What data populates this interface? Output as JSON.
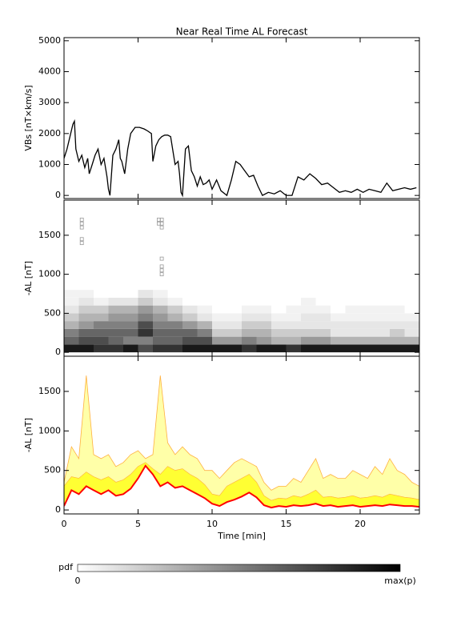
{
  "chart_data": [
    {
      "type": "line",
      "title": "Near Real Time AL Forecast",
      "ylabel": "VBs [nT×km/s]",
      "color": "#000000",
      "xlim": [
        0,
        24
      ],
      "xticks": [
        0,
        5,
        10,
        15,
        20
      ],
      "ylim": [
        -100,
        5100
      ],
      "yticks": [
        0,
        1000,
        2000,
        3000,
        4000,
        5000
      ],
      "x": [
        0,
        0.2,
        0.4,
        0.6,
        0.7,
        0.8,
        1.0,
        1.2,
        1.4,
        1.6,
        1.7,
        1.9,
        2.1,
        2.3,
        2.5,
        2.7,
        2.9,
        3.0,
        3.1,
        3.3,
        3.5,
        3.7,
        3.8,
        3.9,
        4.1,
        4.3,
        4.5,
        4.8,
        5.1,
        5.4,
        5.6,
        5.9,
        6.0,
        6.2,
        6.4,
        6.6,
        6.8,
        7.0,
        7.2,
        7.4,
        7.5,
        7.7,
        7.8,
        7.9,
        8.0,
        8.2,
        8.4,
        8.6,
        8.8,
        9.0,
        9.2,
        9.4,
        9.6,
        9.8,
        10.0,
        10.3,
        10.6,
        11.0,
        11.3,
        11.6,
        11.9,
        12.2,
        12.5,
        12.8,
        13.1,
        13.4,
        13.8,
        14.2,
        14.6,
        15.0,
        15.4,
        15.8,
        16.2,
        16.6,
        17.0,
        17.4,
        17.8,
        18.2,
        18.6,
        19.0,
        19.4,
        19.8,
        20.2,
        20.6,
        21.0,
        21.4,
        21.8,
        22.2,
        22.6,
        23.0,
        23.4,
        23.8
      ],
      "values": [
        1200,
        1500,
        1900,
        2300,
        2400,
        1500,
        1100,
        1300,
        900,
        1200,
        700,
        1000,
        1300,
        1500,
        1000,
        1200,
        600,
        200,
        0,
        1300,
        1500,
        1800,
        1200,
        1100,
        700,
        1500,
        2000,
        2200,
        2200,
        2150,
        2100,
        2000,
        1100,
        1600,
        1800,
        1900,
        1950,
        1950,
        1900,
        1300,
        1000,
        1100,
        700,
        100,
        0,
        1500,
        1600,
        800,
        600,
        300,
        600,
        350,
        400,
        500,
        200,
        500,
        150,
        0,
        500,
        1100,
        1000,
        800,
        600,
        650,
        300,
        0,
        100,
        50,
        150,
        0,
        0,
        600,
        500,
        700,
        550,
        350,
        400,
        250,
        100,
        150,
        100,
        200,
        100,
        200,
        150,
        100,
        400,
        150,
        200,
        250,
        200,
        250
      ]
    },
    {
      "type": "heatmap",
      "ylabel": "-AL [nT]",
      "xlim": [
        0,
        24
      ],
      "xticks": [
        0,
        5,
        10,
        15,
        20
      ],
      "ylim": [
        -50,
        1950
      ],
      "yticks": [
        0,
        500,
        1000,
        1500
      ],
      "xbins": [
        0,
        1,
        2,
        3,
        4,
        5,
        6,
        7,
        8,
        9,
        10,
        11,
        12,
        13,
        14,
        15,
        16,
        17,
        18,
        19,
        20,
        21,
        22,
        23,
        24
      ],
      "ybins": [
        0,
        100,
        200,
        300,
        400,
        500,
        600,
        700,
        800
      ],
      "values": [
        [
          0.9,
          0.9,
          0.8,
          0.8,
          0.9,
          0.7,
          0.8,
          0.8,
          0.9,
          0.9,
          0.9,
          0.9,
          0.8,
          0.9,
          0.9,
          0.8,
          0.9,
          0.9,
          0.9,
          0.9,
          0.9,
          0.9,
          0.9,
          0.9
        ],
        [
          0.6,
          0.7,
          0.7,
          0.6,
          0.5,
          0.5,
          0.6,
          0.6,
          0.7,
          0.7,
          0.4,
          0.4,
          0.5,
          0.4,
          0.3,
          0.3,
          0.4,
          0.4,
          0.3,
          0.3,
          0.3,
          0.3,
          0.3,
          0.3
        ],
        [
          0.5,
          0.6,
          0.6,
          0.6,
          0.6,
          0.8,
          0.6,
          0.6,
          0.6,
          0.5,
          0.2,
          0.2,
          0.3,
          0.3,
          0.2,
          0.2,
          0.2,
          0.2,
          0.1,
          0.1,
          0.1,
          0.1,
          0.2,
          0.1
        ],
        [
          0.3,
          0.4,
          0.5,
          0.5,
          0.5,
          0.7,
          0.5,
          0.5,
          0.4,
          0.3,
          0.1,
          0.1,
          0.2,
          0.2,
          0.1,
          0.1,
          0.1,
          0.1,
          0.1,
          0.1,
          0.1,
          0.1,
          0.1,
          0.1
        ],
        [
          0.2,
          0.3,
          0.3,
          0.4,
          0.4,
          0.5,
          0.4,
          0.3,
          0.2,
          0.1,
          0.05,
          0.05,
          0.1,
          0.1,
          0.05,
          0.05,
          0.1,
          0.1,
          0.05,
          0.05,
          0.05,
          0.05,
          0.05,
          0.05
        ],
        [
          0.1,
          0.2,
          0.2,
          0.3,
          0.3,
          0.4,
          0.3,
          0.2,
          0.1,
          0.05,
          0,
          0,
          0.05,
          0.05,
          0,
          0.05,
          0.05,
          0.05,
          0,
          0.05,
          0.05,
          0.05,
          0.05,
          0
        ],
        [
          0.05,
          0.1,
          0.05,
          0.1,
          0.1,
          0.2,
          0.1,
          0.05,
          0,
          0,
          0,
          0,
          0,
          0,
          0,
          0,
          0.05,
          0,
          0,
          0,
          0,
          0,
          0,
          0
        ],
        [
          0.05,
          0.05,
          0,
          0,
          0,
          0.1,
          0.05,
          0,
          0,
          0,
          0,
          0,
          0,
          0,
          0,
          0,
          0,
          0,
          0,
          0,
          0,
          0,
          0,
          0
        ]
      ],
      "points": {
        "x": [
          1.2,
          1.2,
          1.2,
          1.2,
          1.2,
          6.6,
          6.6,
          6.6,
          6.6,
          6.6,
          6.6,
          6.6,
          6.4,
          6.4
        ],
        "y": [
          1400,
          1450,
          1600,
          1650,
          1700,
          1000,
          1050,
          1100,
          1200,
          1600,
          1650,
          1700,
          1650,
          1700
        ]
      }
    },
    {
      "type": "band",
      "ylabel": "-AL [nT]",
      "xlabel": "Time [min]",
      "xlim": [
        0,
        24
      ],
      "xticks": [
        0,
        5,
        10,
        15,
        20
      ],
      "ylim": [
        -50,
        1945
      ],
      "yticks": [
        0,
        500,
        1000,
        1500
      ],
      "median_color": "#ff0000",
      "inner_color": "#ffff33",
      "outer_color": "#ffffa8",
      "edge_color": "#ffb040",
      "x": [
        0,
        0.5,
        1,
        1.5,
        2,
        2.5,
        3,
        3.5,
        4,
        4.5,
        5,
        5.5,
        6,
        6.5,
        7,
        7.5,
        8,
        8.5,
        9,
        9.5,
        10,
        10.5,
        11,
        11.5,
        12,
        12.5,
        13,
        13.5,
        14,
        14.5,
        15,
        15.5,
        16,
        16.5,
        17,
        17.5,
        18,
        18.5,
        19,
        19.5,
        20,
        20.5,
        21,
        21.5,
        22,
        22.5,
        23,
        23.5,
        24
      ],
      "median": [
        50,
        250,
        200,
        300,
        250,
        200,
        250,
        180,
        200,
        270,
        400,
        560,
        450,
        300,
        350,
        280,
        300,
        250,
        200,
        150,
        80,
        50,
        100,
        130,
        170,
        220,
        160,
        60,
        30,
        50,
        40,
        60,
        50,
        60,
        80,
        50,
        60,
        40,
        50,
        60,
        40,
        50,
        60,
        50,
        70,
        60,
        50,
        50,
        40
      ],
      "inner_upper": [
        300,
        420,
        400,
        480,
        420,
        380,
        420,
        350,
        380,
        450,
        550,
        600,
        520,
        450,
        550,
        500,
        520,
        450,
        400,
        320,
        200,
        180,
        300,
        350,
        400,
        450,
        350,
        180,
        120,
        150,
        140,
        180,
        160,
        200,
        250,
        160,
        170,
        150,
        160,
        180,
        150,
        160,
        180,
        160,
        200,
        180,
        160,
        150,
        130
      ],
      "outer_upper": [
        350,
        800,
        650,
        1700,
        700,
        650,
        700,
        550,
        600,
        700,
        750,
        650,
        700,
        1700,
        850,
        700,
        800,
        700,
        650,
        500,
        500,
        400,
        500,
        600,
        650,
        600,
        550,
        350,
        250,
        300,
        300,
        400,
        350,
        500,
        650,
        400,
        450,
        400,
        400,
        500,
        450,
        400,
        550,
        450,
        650,
        500,
        450,
        350,
        300
      ]
    }
  ],
  "colorbar": {
    "label": "pdf",
    "min_label": "0",
    "max_label": "max(p)"
  }
}
